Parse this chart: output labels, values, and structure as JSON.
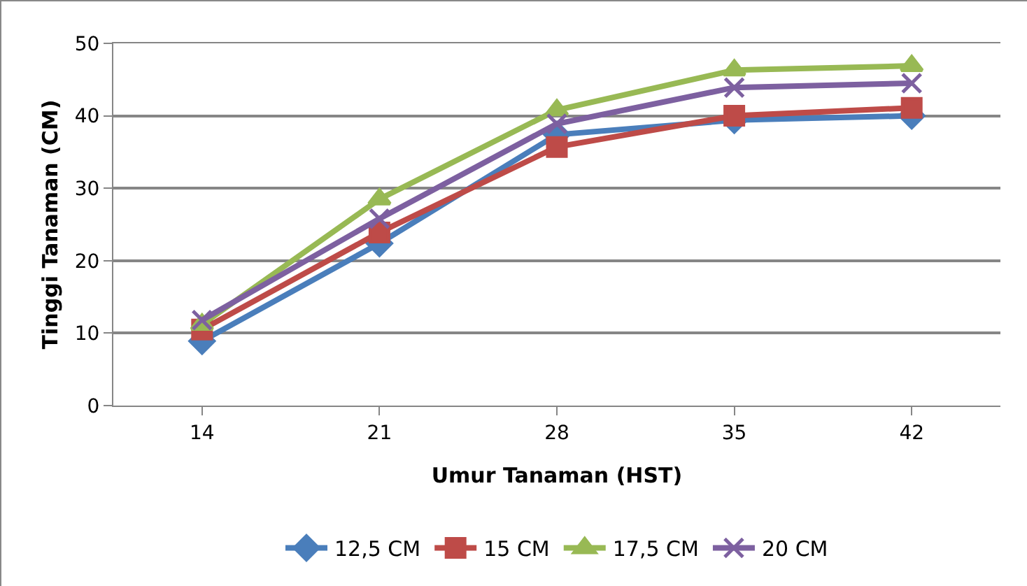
{
  "chart_data": {
    "type": "line",
    "xlabel": "Umur Tanaman (HST)",
    "ylabel": "Tinggi Tanaman (CM)",
    "categories": [
      "14",
      "21",
      "28",
      "35",
      "42"
    ],
    "ylim": [
      0,
      50
    ],
    "yticks": [
      0,
      10,
      20,
      30,
      40,
      50
    ],
    "grid": "y",
    "legend": "bottom",
    "line_style": "solid",
    "series": [
      {
        "name": "12,5 CM",
        "color": "#4a7ebb",
        "marker": "diamond",
        "values": [
          8.9,
          22.4,
          37.4,
          39.4,
          40
        ]
      },
      {
        "name": "15 CM",
        "color": "#be4b48",
        "marker": "square",
        "values": [
          10.5,
          23.9,
          35.7,
          40,
          41.1
        ]
      },
      {
        "name": "17,5 CM",
        "color": "#98b954",
        "marker": "triangle",
        "values": [
          11.2,
          28.5,
          40.8,
          46.3,
          46.9
        ]
      },
      {
        "name": "20 CM",
        "color": "#7d60a0",
        "marker": "cross",
        "values": [
          11.8,
          25.8,
          38.9,
          43.9,
          44.5
        ]
      }
    ]
  }
}
